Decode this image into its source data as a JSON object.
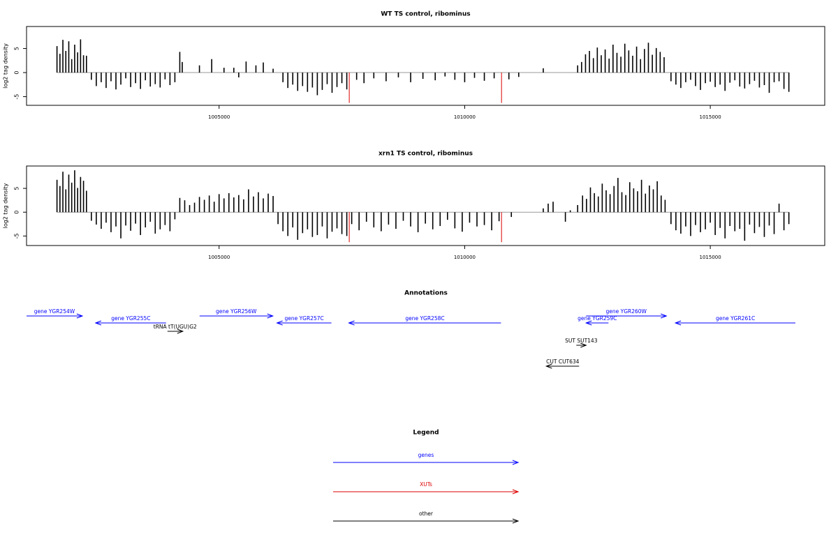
{
  "chart_data": [
    {
      "type": "bar",
      "title": "WT TS control, ribominus",
      "ylabel": "log2 tag density",
      "xlim": [
        1001080,
        1017330
      ],
      "ylim": [
        -6.8,
        9.57
      ],
      "xticks": [
        1005000,
        1010000,
        1015000
      ],
      "yticks": [
        -5,
        0,
        5
      ],
      "series": [
        {
          "color": "#000000",
          "x": [
            1001700,
            1001760,
            1001820,
            1001880,
            1001940,
            1002000,
            1002060,
            1002120,
            1002180,
            1002240,
            1002300,
            1002400,
            1002500,
            1002600,
            1002700,
            1002800,
            1002900,
            1003000,
            1003100,
            1003200,
            1003300,
            1003400,
            1003500,
            1003600,
            1003700,
            1003800,
            1003900,
            1004000,
            1004100,
            1004200,
            1004250,
            1004600,
            1004850,
            1005100,
            1005300,
            1005400,
            1005550,
            1005750,
            1005900,
            1006100,
            1006300,
            1006400,
            1006500,
            1006600,
            1006700,
            1006800,
            1006900,
            1007000,
            1007100,
            1007200,
            1007300,
            1007400,
            1007500,
            1007600,
            1007800,
            1007950,
            1008150,
            1008400,
            1008650,
            1008900,
            1009150,
            1009400,
            1009600,
            1009800,
            1010000,
            1010200,
            1010400,
            1010600,
            1010900,
            1011100,
            1011600,
            1012300,
            1012380,
            1012460,
            1012540,
            1012620,
            1012700,
            1012780,
            1012860,
            1012940,
            1013020,
            1013100,
            1013180,
            1013260,
            1013340,
            1013420,
            1013500,
            1013580,
            1013660,
            1013740,
            1013820,
            1013900,
            1013980,
            1014060,
            1014200,
            1014300,
            1014400,
            1014500,
            1014600,
            1014700,
            1014800,
            1014900,
            1015000,
            1015100,
            1015200,
            1015300,
            1015400,
            1015500,
            1015600,
            1015700,
            1015800,
            1015900,
            1016000,
            1016100,
            1016200,
            1016300,
            1016400,
            1016500,
            1016600
          ],
          "values": [
            5.5,
            3.9,
            6.8,
            4.5,
            6.5,
            2.8,
            5.8,
            4.2,
            6.9,
            3.6,
            3.5,
            -1.5,
            -2.8,
            -2.0,
            -3.2,
            -1.8,
            -3.5,
            -2.5,
            -1.2,
            -3.0,
            -2.2,
            -3.4,
            -1.6,
            -2.9,
            -2.4,
            -3.1,
            -1.4,
            -2.6,
            -2.0,
            4.3,
            2.2,
            1.5,
            2.8,
            1.0,
            1.0,
            -1.0,
            2.3,
            1.5,
            2.1,
            0.8,
            -2.0,
            -3.2,
            -2.5,
            -3.8,
            -2.8,
            -4.0,
            -3.1,
            -4.7,
            -3.6,
            -2.4,
            -4.2,
            -3.0,
            -2.2,
            -3.5,
            -1.5,
            -2.2,
            -1.2,
            -1.8,
            -1.0,
            -2.0,
            -1.3,
            -1.6,
            -0.8,
            -1.5,
            -2.0,
            -1.1,
            -1.7,
            -1.2,
            -1.4,
            -0.9,
            0.9,
            1.5,
            2.2,
            3.8,
            4.5,
            3.0,
            5.2,
            3.6,
            4.8,
            2.9,
            5.8,
            4.1,
            3.3,
            6.0,
            4.6,
            3.5,
            5.4,
            2.8,
            4.9,
            6.2,
            3.7,
            5.1,
            4.3,
            3.2,
            -1.8,
            -2.5,
            -3.2,
            -2.0,
            -1.5,
            -2.8,
            -3.6,
            -2.2,
            -1.9,
            -3.0,
            -2.5,
            -3.8,
            -2.1,
            -1.6,
            -2.9,
            -3.3,
            -2.4,
            -1.7,
            -3.1,
            -2.6,
            -4.2,
            -2.0,
            -1.8,
            -3.4,
            -4.0
          ]
        },
        {
          "color": "#dd0000",
          "x": [
            1007650,
            1010750
          ],
          "values": [
            -6.3,
            -6.3
          ]
        }
      ]
    },
    {
      "type": "bar",
      "title": "xrn1 TS control, ribominus",
      "ylabel": "log2 tag density",
      "xlim": [
        1001080,
        1017330
      ],
      "ylim": [
        -7.0,
        9.7
      ],
      "xticks": [
        1005000,
        1010000,
        1015000
      ],
      "yticks": [
        -5,
        0,
        5
      ],
      "series": [
        {
          "color": "#000000",
          "x": [
            1001700,
            1001760,
            1001820,
            1001880,
            1001940,
            1002000,
            1002060,
            1002120,
            1002180,
            1002240,
            1002300,
            1002400,
            1002500,
            1002600,
            1002700,
            1002800,
            1002900,
            1003000,
            1003100,
            1003200,
            1003300,
            1003400,
            1003500,
            1003600,
            1003700,
            1003800,
            1003900,
            1004000,
            1004100,
            1004200,
            1004300,
            1004400,
            1004500,
            1004600,
            1004700,
            1004800,
            1004900,
            1005000,
            1005100,
            1005200,
            1005300,
            1005400,
            1005500,
            1005600,
            1005700,
            1005800,
            1005900,
            1006000,
            1006100,
            1006200,
            1006300,
            1006400,
            1006500,
            1006600,
            1006700,
            1006800,
            1006900,
            1007000,
            1007100,
            1007200,
            1007300,
            1007400,
            1007500,
            1007600,
            1007700,
            1007850,
            1008000,
            1008150,
            1008300,
            1008450,
            1008600,
            1008750,
            1008900,
            1009050,
            1009200,
            1009350,
            1009500,
            1009650,
            1009800,
            1009950,
            1010100,
            1010250,
            1010400,
            1010550,
            1010700,
            1010950,
            1011600,
            1011700,
            1011800,
            1012050,
            1012150,
            1012300,
            1012400,
            1012480,
            1012560,
            1012640,
            1012720,
            1012800,
            1012880,
            1012960,
            1013040,
            1013120,
            1013200,
            1013280,
            1013360,
            1013440,
            1013520,
            1013600,
            1013680,
            1013760,
            1013840,
            1013920,
            1014000,
            1014080,
            1014200,
            1014300,
            1014400,
            1014500,
            1014600,
            1014700,
            1014800,
            1014900,
            1015000,
            1015100,
            1015200,
            1015300,
            1015400,
            1015500,
            1015600,
            1015700,
            1015800,
            1015900,
            1016000,
            1016100,
            1016200,
            1016300,
            1016400,
            1016500,
            1016600
          ],
          "values": [
            6.8,
            5.5,
            8.5,
            4.8,
            7.9,
            6.2,
            8.8,
            5.1,
            7.4,
            6.6,
            4.5,
            -1.8,
            -2.6,
            -3.5,
            -2.2,
            -4.2,
            -3.0,
            -5.5,
            -2.8,
            -3.9,
            -2.4,
            -4.8,
            -3.2,
            -2.0,
            -4.5,
            -3.6,
            -2.7,
            -4.0,
            -1.5,
            3.0,
            2.5,
            1.5,
            2.0,
            3.2,
            2.6,
            3.5,
            2.2,
            3.8,
            2.9,
            4.0,
            3.1,
            3.6,
            2.7,
            4.8,
            3.3,
            4.2,
            2.9,
            3.9,
            3.4,
            -2.5,
            -4.0,
            -5.0,
            -3.2,
            -5.8,
            -4.4,
            -3.6,
            -5.2,
            -4.8,
            -3.0,
            -5.5,
            -4.1,
            -3.4,
            -4.6,
            -5.0,
            -2.5,
            -3.8,
            -2.0,
            -3.2,
            -4.0,
            -2.6,
            -3.5,
            -1.8,
            -3.0,
            -4.2,
            -2.4,
            -3.6,
            -2.9,
            -1.6,
            -3.4,
            -4.1,
            -2.2,
            -3.0,
            -2.7,
            -3.8,
            -1.9,
            -1.0,
            0.8,
            1.8,
            2.2,
            -2.0,
            0.4,
            1.5,
            3.5,
            2.8,
            5.2,
            4.0,
            3.3,
            6.0,
            4.6,
            3.8,
            5.5,
            7.2,
            4.2,
            3.6,
            6.3,
            5.0,
            4.4,
            6.8,
            3.9,
            5.6,
            4.8,
            6.5,
            3.5,
            2.6,
            -2.5,
            -3.8,
            -4.5,
            -3.0,
            -5.0,
            -2.7,
            -4.2,
            -3.6,
            -2.2,
            -4.8,
            -3.3,
            -5.5,
            -2.9,
            -4.0,
            -3.5,
            -6.0,
            -2.6,
            -4.4,
            -3.1,
            -5.2,
            -2.8,
            -4.6,
            1.8,
            -3.8,
            -2.5
          ]
        },
        {
          "color": "#dd0000",
          "x": [
            1007650,
            1010750
          ],
          "values": [
            -6.3,
            -6.3
          ]
        }
      ]
    }
  ],
  "annotations": {
    "title": "Annotations",
    "features": [
      {
        "label": "gene YGR254W",
        "start": 1001080,
        "end": 1002216,
        "strand": "+",
        "color": "#0000ff"
      },
      {
        "label": "gene YGR255C",
        "start": 1002486,
        "end": 1003921,
        "strand": "-",
        "color": "#0000ff"
      },
      {
        "label": "tRNA tT(UGU)G2",
        "start": 1003949,
        "end": 1004262,
        "strand": "+",
        "color": "#000000"
      },
      {
        "label": "gene YGR256W",
        "start": 1004603,
        "end": 1006094,
        "strand": "+",
        "color": "#0000ff"
      },
      {
        "label": "gene YGR257C",
        "start": 1006179,
        "end": 1007287,
        "strand": "-",
        "color": "#0000ff"
      },
      {
        "label": "gene YGR258C",
        "start": 1007642,
        "end": 1010739,
        "strand": "-",
        "color": "#0000ff"
      },
      {
        "label": "gene YGR259C",
        "start": 1012472,
        "end": 1012927,
        "strand": "-",
        "color": "#0000ff"
      },
      {
        "label": "gene YGR260W",
        "start": 1012472,
        "end": 1014106,
        "strand": "+",
        "color": "#0000ff"
      },
      {
        "label": "gene YGR261C",
        "start": 1014290,
        "end": 1016733,
        "strand": "-",
        "color": "#0000ff"
      },
      {
        "label": "SUT SUT143",
        "start": 1012273,
        "end": 1012472,
        "strand": "+",
        "color": "#000000"
      },
      {
        "label": "CUT CUT634",
        "start": 1011662,
        "end": 1012330,
        "strand": "-",
        "color": "#000000"
      }
    ]
  },
  "legend": {
    "title": "Legend",
    "items": [
      {
        "label": "genes",
        "color": "#0000ff"
      },
      {
        "label": "XUTs",
        "color": "#dd0000"
      },
      {
        "label": "other",
        "color": "#000000"
      }
    ]
  }
}
